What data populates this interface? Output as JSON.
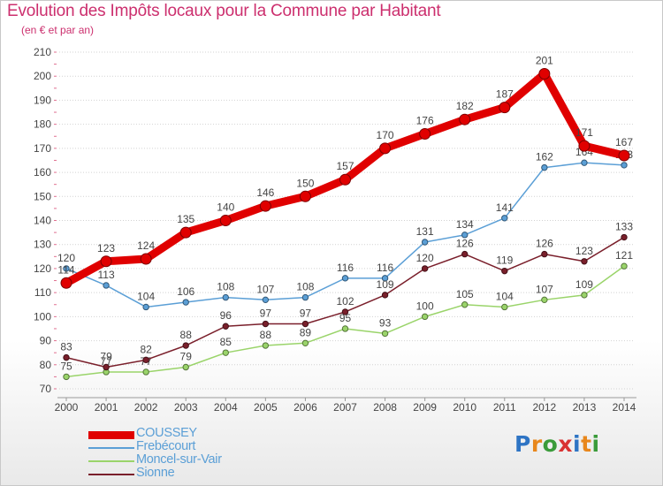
{
  "header": {
    "title": "Evolution des Impôts locaux pour la Commune par Habitant",
    "subtitle": "(en € et par an)"
  },
  "logo": {
    "text": "Proxiti",
    "letters": [
      "P",
      "r",
      "o",
      "x",
      "i",
      "t",
      "i"
    ],
    "colors": [
      "#2e74c4",
      "#e8871c",
      "#3a9b3a",
      "#d93232",
      "#2e74c4",
      "#e8871c",
      "#3a9b3a"
    ]
  },
  "chart_data": {
    "type": "line",
    "x": [
      "2000",
      "2001",
      "2002",
      "2003",
      "2004",
      "2005",
      "2006",
      "2007",
      "2008",
      "2009",
      "2010",
      "2011",
      "2012",
      "2013",
      "2014"
    ],
    "ylim": [
      70,
      210
    ],
    "yticks": [
      70,
      80,
      90,
      100,
      110,
      120,
      130,
      140,
      150,
      160,
      170,
      180,
      190,
      200,
      210
    ],
    "grid": "dotted-horizontal",
    "legend_position": "bottom-left",
    "series": [
      {
        "name": "COUSSEY",
        "color": "#e00000",
        "values": [
          114,
          123,
          124,
          135,
          140,
          146,
          150,
          157,
          170,
          176,
          182,
          187,
          201,
          171,
          167
        ],
        "labels": [
          "114",
          "123",
          "124",
          "135",
          "140",
          "146",
          "150",
          "157",
          "170",
          "176",
          "182",
          "187",
          "201",
          "171",
          "167"
        ],
        "emphasis": true
      },
      {
        "name": "Frebécourt",
        "color": "#5b9fd6",
        "values": [
          120,
          113,
          104,
          106,
          108,
          107,
          108,
          116,
          116,
          131,
          134,
          141,
          162,
          164,
          163
        ],
        "labels": [
          "120",
          "113",
          "104",
          "106",
          "108",
          "107",
          "108",
          "116",
          "116",
          "131",
          "134",
          "141",
          "162",
          "164",
          "163"
        ]
      },
      {
        "name": "Moncel-sur-Vair",
        "color": "#9ad46a",
        "values": [
          75,
          77,
          77,
          79,
          85,
          88,
          89,
          95,
          93,
          100,
          105,
          104,
          107,
          109,
          121
        ],
        "labels": [
          "75",
          "77",
          "77",
          "79",
          "85",
          "88",
          "89",
          "95",
          "93",
          "100",
          "105",
          "104",
          "107",
          "109",
          "121"
        ]
      },
      {
        "name": "Sionne",
        "color": "#7a1f2b",
        "values": [
          83,
          79,
          82,
          88,
          96,
          97,
          97,
          102,
          109,
          120,
          126,
          119,
          126,
          123,
          133
        ],
        "labels": [
          "83",
          "79",
          "82",
          "88",
          "96",
          "97",
          "97",
          "102",
          "109",
          "120",
          "126",
          "119",
          "126",
          "123",
          "133"
        ]
      }
    ]
  }
}
